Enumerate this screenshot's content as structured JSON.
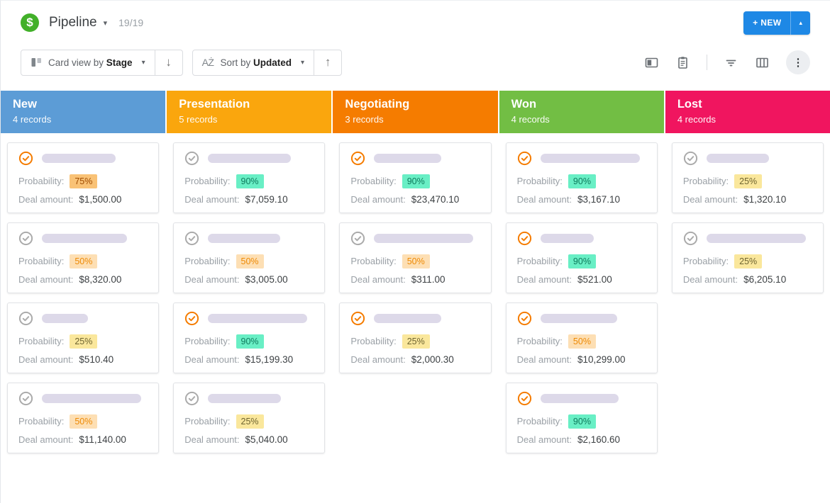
{
  "header": {
    "logo_glyph": "$",
    "title": "Pipeline",
    "count": "19/19",
    "new_button_label": "+ NEW"
  },
  "toolbar": {
    "view_prefix": "Card view by",
    "view_value": "Stage",
    "sort_prefix": "Sort by",
    "sort_value": "Updated",
    "sort_az_glyph": "AŻ",
    "arrow_down": "↓",
    "arrow_up": "↑",
    "caret_down": "▾",
    "caret_up": "▴",
    "kebab_glyph": "⋮"
  },
  "labels": {
    "probability": "Probability:",
    "deal_amount": "Deal amount:"
  },
  "colors": {
    "accent_blue": "#1E88E5",
    "logo_green": "#42B029",
    "check_orange": "#F57C00",
    "check_gray": "#ABABAB",
    "badge_90_bg": "#69EFC5",
    "badge_75_bg": "#F9C276",
    "badge_50_bg": "#FDDFB4",
    "badge_25_bg": "#FAE79C"
  },
  "columns": [
    {
      "name": "New",
      "records": "4 records",
      "color": "#5C9CD6",
      "cards": [
        {
          "icon": "orange",
          "pill_width": 104,
          "probability": "75%",
          "amount": "$1,500.00"
        },
        {
          "icon": "gray",
          "pill_width": 120,
          "probability": "50%",
          "amount": "$8,320.00"
        },
        {
          "icon": "gray",
          "pill_width": 65,
          "probability": "25%",
          "amount": "$510.40"
        },
        {
          "icon": "gray",
          "pill_width": 140,
          "probability": "50%",
          "amount": "$11,140.00"
        }
      ]
    },
    {
      "name": "Presentation",
      "records": "5 records",
      "color": "#FAA60D",
      "cards": [
        {
          "icon": "gray",
          "pill_width": 117,
          "probability": "90%",
          "amount": "$7,059.10"
        },
        {
          "icon": "gray",
          "pill_width": 102,
          "probability": "50%",
          "amount": "$3,005.00"
        },
        {
          "icon": "orange",
          "pill_width": 140,
          "probability": "90%",
          "amount": "$15,199.30"
        },
        {
          "icon": "gray",
          "pill_width": 103,
          "probability": "25%",
          "amount": "$5,040.00"
        }
      ]
    },
    {
      "name": "Negotiating",
      "records": "3 records",
      "color": "#F57C00",
      "cards": [
        {
          "icon": "orange",
          "pill_width": 95,
          "probability": "90%",
          "amount": "$23,470.10"
        },
        {
          "icon": "gray",
          "pill_width": 140,
          "probability": "50%",
          "amount": "$311.00"
        },
        {
          "icon": "orange",
          "pill_width": 95,
          "probability": "25%",
          "amount": "$2,000.30"
        }
      ]
    },
    {
      "name": "Won",
      "records": "4 records",
      "color": "#72BE44",
      "cards": [
        {
          "icon": "orange",
          "pill_width": 140,
          "probability": "90%",
          "amount": "$3,167.10"
        },
        {
          "icon": "orange",
          "pill_width": 75,
          "probability": "90%",
          "amount": "$521.00"
        },
        {
          "icon": "orange",
          "pill_width": 108,
          "probability": "50%",
          "amount": "$10,299.00"
        },
        {
          "icon": "orange",
          "pill_width": 110,
          "probability": "90%",
          "amount": "$2,160.60"
        }
      ]
    },
    {
      "name": "Lost",
      "records": "4 records",
      "color": "#F0155F",
      "cards": [
        {
          "icon": "gray",
          "pill_width": 88,
          "probability": "25%",
          "amount": "$1,320.10"
        },
        {
          "icon": "gray",
          "pill_width": 140,
          "probability": "25%",
          "amount": "$6,205.10"
        }
      ]
    }
  ]
}
